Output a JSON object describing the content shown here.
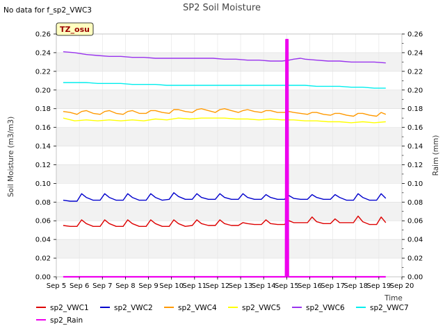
{
  "chart_data": {
    "type": "line",
    "title": "SP2 Soil Moisture",
    "note": "No data for f_sp2_VWC3",
    "badge": "TZ_osu",
    "xlabel": "Time",
    "ylabel": "Soil Moisture (m3/m3)",
    "y2label": "Raim (mm)",
    "xlim": [
      5,
      20
    ],
    "ylim": [
      0,
      0.26
    ],
    "y2lim": [
      0,
      0.26
    ],
    "x_ticks": [
      5,
      6,
      7,
      8,
      9,
      10,
      11,
      12,
      13,
      14,
      15,
      16,
      17,
      18,
      19,
      20
    ],
    "x_tick_labels": [
      "Sep 5",
      "Sep 6",
      "Sep 7",
      "Sep 8",
      "Sep 9",
      "Sep 10",
      "Sep 11",
      "Sep 12",
      "Sep 13",
      "Sep 14",
      "Sep 15",
      "Sep 16",
      "Sep 17",
      "Sep 18",
      "Sep 19",
      "Sep 20"
    ],
    "y_ticks": [
      0.0,
      0.02,
      0.04,
      0.06,
      0.08,
      0.1,
      0.12,
      0.14,
      0.16,
      0.18,
      0.2,
      0.22,
      0.24,
      0.26
    ],
    "y_tick_labels": [
      "0.00",
      "0.02",
      "0.04",
      "0.06",
      "0.08",
      "0.10",
      "0.12",
      "0.14",
      "0.16",
      "0.18",
      "0.20",
      "0.22",
      "0.24",
      "0.26"
    ],
    "grid": true,
    "legend_position": "bottom",
    "series": [
      {
        "name": "sp2_VWC1",
        "color": "#dd0000",
        "x": [
          5.3,
          5.6,
          5.9,
          6.1,
          6.3,
          6.6,
          6.9,
          7.1,
          7.3,
          7.6,
          7.9,
          8.1,
          8.3,
          8.6,
          8.9,
          9.1,
          9.3,
          9.6,
          9.9,
          10.1,
          10.3,
          10.6,
          10.9,
          11.1,
          11.3,
          11.6,
          11.9,
          12.1,
          12.3,
          12.6,
          12.9,
          13.1,
          13.3,
          13.6,
          13.9,
          14.1,
          14.3,
          14.6,
          14.9,
          15.1,
          15.3,
          15.6,
          15.9,
          16.1,
          16.3,
          16.6,
          16.9,
          17.1,
          17.3,
          17.6,
          17.9,
          18.1,
          18.3,
          18.6,
          18.9,
          19.1,
          19.3
        ],
        "y": [
          0.055,
          0.054,
          0.054,
          0.061,
          0.057,
          0.054,
          0.054,
          0.061,
          0.057,
          0.054,
          0.054,
          0.061,
          0.057,
          0.054,
          0.054,
          0.061,
          0.057,
          0.054,
          0.054,
          0.061,
          0.057,
          0.054,
          0.055,
          0.061,
          0.057,
          0.055,
          0.055,
          0.061,
          0.057,
          0.055,
          0.055,
          0.058,
          0.057,
          0.056,
          0.056,
          0.061,
          0.057,
          0.056,
          0.056,
          0.06,
          0.058,
          0.058,
          0.058,
          0.064,
          0.059,
          0.057,
          0.057,
          0.062,
          0.058,
          0.058,
          0.058,
          0.065,
          0.059,
          0.056,
          0.056,
          0.064,
          0.058
        ]
      },
      {
        "name": "sp2_VWC2",
        "color": "#0000cc",
        "x": [
          5.3,
          5.6,
          5.9,
          6.1,
          6.3,
          6.6,
          6.9,
          7.1,
          7.3,
          7.6,
          7.9,
          8.1,
          8.3,
          8.6,
          8.9,
          9.1,
          9.3,
          9.6,
          9.9,
          10.1,
          10.3,
          10.6,
          10.9,
          11.1,
          11.3,
          11.6,
          11.9,
          12.1,
          12.3,
          12.6,
          12.9,
          13.1,
          13.3,
          13.6,
          13.9,
          14.1,
          14.3,
          14.6,
          14.9,
          15.1,
          15.3,
          15.6,
          15.9,
          16.1,
          16.3,
          16.6,
          16.9,
          17.1,
          17.3,
          17.6,
          17.9,
          18.1,
          18.3,
          18.6,
          18.9,
          19.1,
          19.3
        ],
        "y": [
          0.082,
          0.081,
          0.081,
          0.089,
          0.085,
          0.082,
          0.082,
          0.089,
          0.085,
          0.082,
          0.082,
          0.089,
          0.085,
          0.082,
          0.082,
          0.089,
          0.085,
          0.082,
          0.083,
          0.09,
          0.086,
          0.083,
          0.083,
          0.089,
          0.085,
          0.083,
          0.083,
          0.089,
          0.085,
          0.083,
          0.083,
          0.089,
          0.085,
          0.083,
          0.083,
          0.088,
          0.085,
          0.083,
          0.083,
          0.087,
          0.084,
          0.083,
          0.083,
          0.088,
          0.085,
          0.083,
          0.083,
          0.088,
          0.085,
          0.082,
          0.082,
          0.089,
          0.085,
          0.082,
          0.082,
          0.089,
          0.084
        ]
      },
      {
        "name": "sp2_VWC4",
        "color": "#ff9900",
        "x": [
          5.3,
          5.6,
          5.9,
          6.1,
          6.3,
          6.6,
          6.9,
          7.1,
          7.3,
          7.6,
          7.9,
          8.1,
          8.3,
          8.6,
          8.9,
          9.1,
          9.3,
          9.6,
          9.9,
          10.1,
          10.3,
          10.6,
          10.9,
          11.1,
          11.3,
          11.6,
          11.9,
          12.1,
          12.3,
          12.6,
          12.9,
          13.1,
          13.3,
          13.6,
          13.9,
          14.1,
          14.3,
          14.6,
          14.9,
          15.1,
          15.3,
          15.6,
          15.9,
          16.1,
          16.3,
          16.6,
          16.9,
          17.1,
          17.3,
          17.6,
          17.9,
          18.1,
          18.3,
          18.6,
          18.9,
          19.1,
          19.3
        ],
        "y": [
          0.177,
          0.176,
          0.174,
          0.177,
          0.178,
          0.175,
          0.174,
          0.177,
          0.178,
          0.175,
          0.174,
          0.177,
          0.178,
          0.175,
          0.175,
          0.178,
          0.178,
          0.176,
          0.175,
          0.179,
          0.179,
          0.177,
          0.176,
          0.179,
          0.18,
          0.178,
          0.176,
          0.179,
          0.18,
          0.178,
          0.176,
          0.178,
          0.179,
          0.177,
          0.176,
          0.178,
          0.178,
          0.176,
          0.176,
          0.177,
          0.176,
          0.175,
          0.174,
          0.176,
          0.176,
          0.174,
          0.173,
          0.175,
          0.175,
          0.173,
          0.172,
          0.175,
          0.175,
          0.173,
          0.172,
          0.176,
          0.174
        ]
      },
      {
        "name": "sp2_VWC5",
        "color": "#ffff00",
        "x": [
          5.3,
          5.8,
          6.3,
          6.8,
          7.3,
          7.8,
          8.3,
          8.8,
          9.3,
          9.8,
          10.3,
          10.8,
          11.3,
          11.8,
          12.3,
          12.8,
          13.3,
          13.8,
          14.3,
          14.8,
          15.3,
          15.8,
          16.3,
          16.8,
          17.3,
          17.8,
          18.3,
          18.8,
          19.3
        ],
        "y": [
          0.17,
          0.167,
          0.168,
          0.167,
          0.168,
          0.167,
          0.168,
          0.167,
          0.169,
          0.168,
          0.17,
          0.169,
          0.17,
          0.17,
          0.17,
          0.169,
          0.169,
          0.168,
          0.169,
          0.168,
          0.168,
          0.167,
          0.167,
          0.166,
          0.166,
          0.165,
          0.166,
          0.165,
          0.166
        ]
      },
      {
        "name": "sp2_VWC6",
        "color": "#9933ee",
        "x": [
          5.3,
          5.8,
          6.3,
          6.8,
          7.3,
          7.8,
          8.3,
          8.8,
          9.3,
          9.8,
          10.3,
          10.8,
          11.3,
          11.8,
          12.3,
          12.8,
          13.3,
          13.8,
          14.3,
          14.8,
          15.1,
          15.3,
          15.6,
          15.8,
          16.3,
          16.8,
          17.3,
          17.8,
          18.3,
          18.8,
          19.3
        ],
        "y": [
          0.241,
          0.24,
          0.238,
          0.237,
          0.236,
          0.236,
          0.235,
          0.235,
          0.234,
          0.234,
          0.234,
          0.234,
          0.234,
          0.234,
          0.233,
          0.233,
          0.232,
          0.232,
          0.231,
          0.231,
          0.232,
          0.233,
          0.234,
          0.233,
          0.232,
          0.231,
          0.231,
          0.23,
          0.23,
          0.23,
          0.229
        ]
      },
      {
        "name": "sp2_VWC7",
        "color": "#00eeee",
        "x": [
          5.3,
          5.8,
          6.3,
          6.8,
          7.3,
          7.8,
          8.3,
          8.8,
          9.3,
          9.8,
          10.3,
          10.8,
          11.3,
          11.8,
          12.3,
          12.8,
          13.3,
          13.8,
          14.3,
          14.8,
          15.3,
          15.8,
          16.3,
          16.8,
          17.3,
          17.8,
          18.3,
          18.8,
          19.3
        ],
        "y": [
          0.208,
          0.208,
          0.208,
          0.207,
          0.207,
          0.207,
          0.206,
          0.206,
          0.206,
          0.205,
          0.205,
          0.205,
          0.205,
          0.205,
          0.205,
          0.205,
          0.205,
          0.205,
          0.205,
          0.205,
          0.205,
          0.205,
          0.204,
          0.204,
          0.204,
          0.203,
          0.203,
          0.202,
          0.202
        ]
      },
      {
        "name": "sp2_Rain",
        "color": "#ee00ee",
        "axis": "right",
        "x": [
          5.3,
          14.95,
          14.97,
          14.99,
          15.01,
          15.03,
          15.05,
          15.07,
          19.3
        ],
        "y": [
          0.0,
          0.0,
          0.254,
          0.0,
          0.254,
          0.0,
          0.254,
          0.0,
          0.0
        ]
      }
    ]
  }
}
